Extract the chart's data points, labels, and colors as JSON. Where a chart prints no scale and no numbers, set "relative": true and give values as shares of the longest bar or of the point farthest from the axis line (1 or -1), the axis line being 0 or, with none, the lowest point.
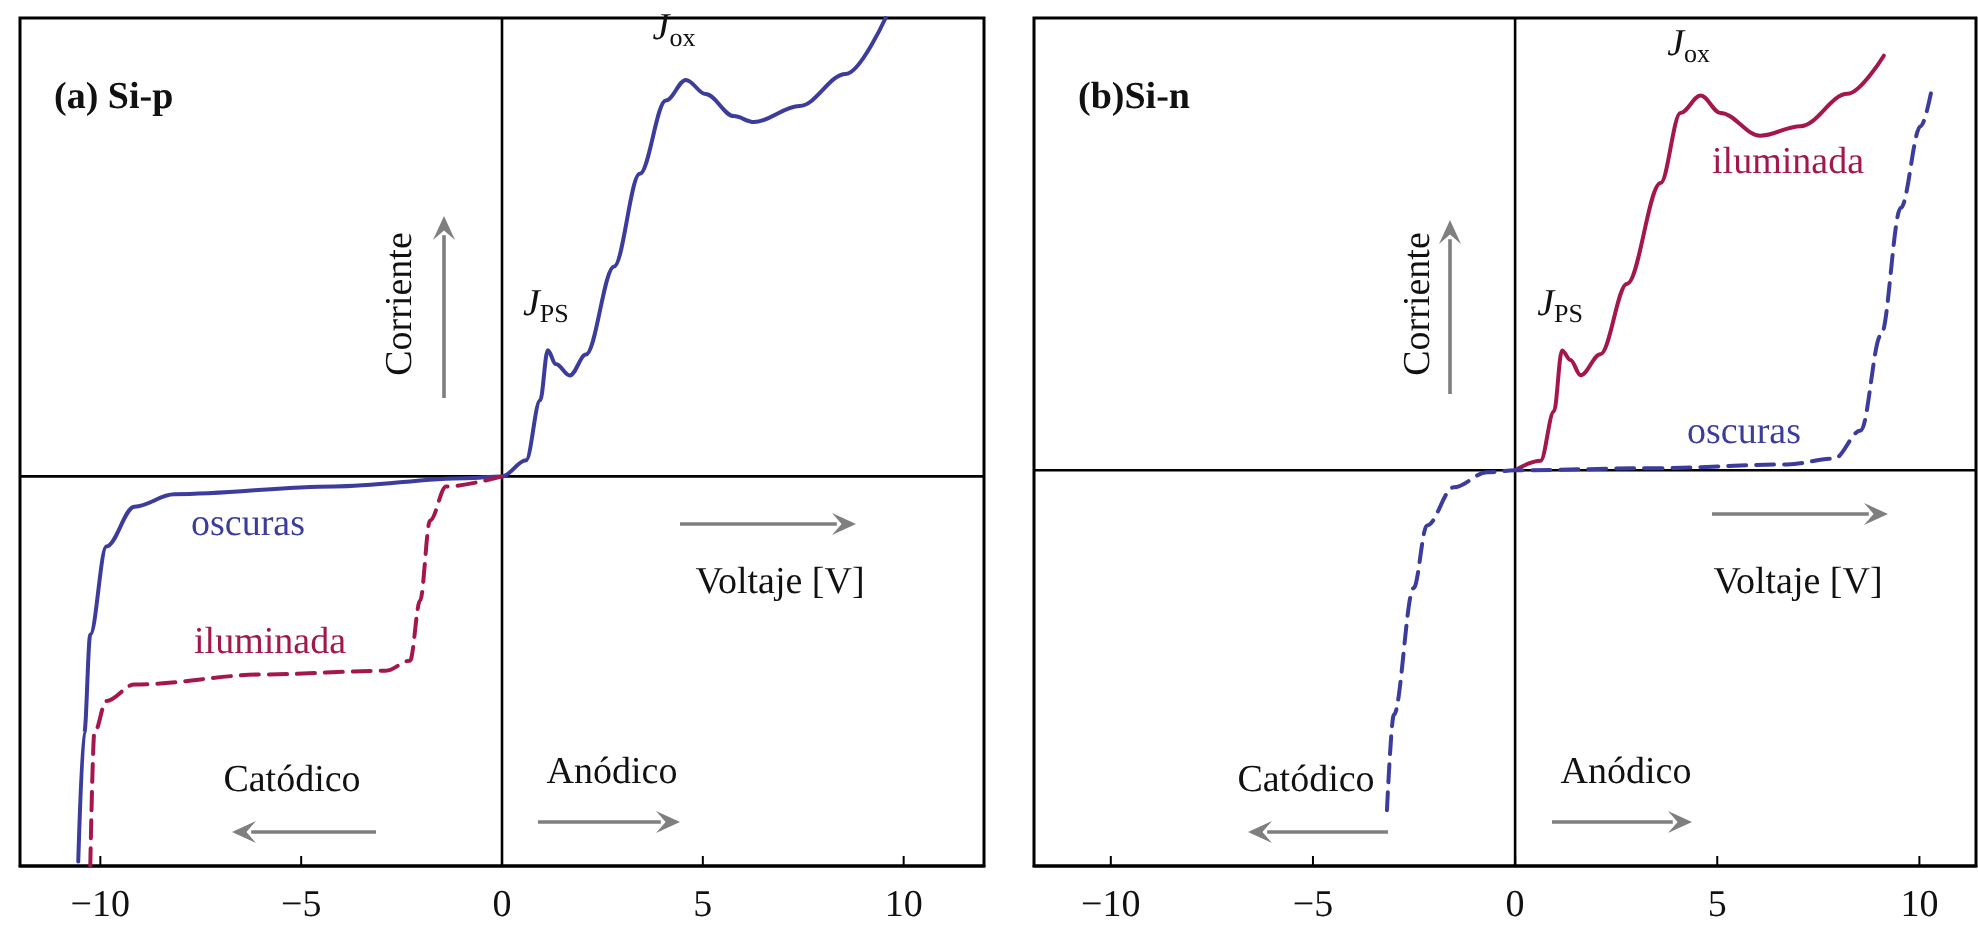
{
  "chart_data": [
    {
      "type": "line",
      "title": "(a) Si-p",
      "relative": true,
      "xlim": [
        -12,
        12
      ],
      "xticks": [
        -10,
        -5,
        0,
        5,
        10
      ],
      "ref_lines": [
        {
          "axis": "x",
          "value": 0,
          "color": "#000000"
        }
      ],
      "grid": false,
      "legend": false,
      "marker": "none",
      "annotations": [
        "Corriente",
        "Voltaje [V]",
        "Anódico",
        "Catódico",
        {
          "text": "J$_{ox}$",
          "x": 4.58,
          "y": 0.865
        },
        {
          "text": "J$_{PS}$",
          "x": 1.14,
          "y": 0.275
        }
      ],
      "series": [
        {
          "name": "oscuras",
          "color": "#3b3c9c",
          "line_style": "solid",
          "x": [
            -10.55,
            -10.4,
            -10.25,
            -9.85,
            -9.15,
            -8.16,
            -4.18,
            -0.9,
            0,
            0.6,
            0.95,
            1.14,
            1.34,
            1.69,
            2.09,
            2.79,
            3.43,
            4.08,
            4.58,
            5.07,
            5.77,
            6.27,
            7.41,
            8.56,
            9.55
          ],
          "values": [
            -0.84,
            -0.56,
            -0.345,
            -0.153,
            -0.066,
            -0.039,
            -0.022,
            -0.004,
            0,
            0.035,
            0.166,
            0.275,
            0.245,
            0.22,
            0.266,
            0.458,
            0.66,
            0.82,
            0.865,
            0.834,
            0.786,
            0.773,
            0.808,
            0.878,
            1
          ]
        },
        {
          "name": "iluminada",
          "color": "#a3174d",
          "line_style": "dashed",
          "x": [
            -10.25,
            -10.15,
            -9.85,
            -9.15,
            -5.87,
            -2.89,
            -2.29,
            -2.04,
            -1.79,
            -1.39,
            0
          ],
          "values": [
            -0.85,
            -0.56,
            -0.49,
            -0.454,
            -0.432,
            -0.424,
            -0.402,
            -0.271,
            -0.096,
            -0.022,
            0
          ]
        }
      ]
    },
    {
      "type": "line",
      "title": "(b)Si-n",
      "relative": true,
      "xlim": [
        -11.9,
        11.4
      ],
      "xticks": [
        -10,
        -5,
        0,
        5,
        10
      ],
      "ref_lines": [
        {
          "axis": "x",
          "value": 0,
          "color": "#000000"
        }
      ],
      "grid": false,
      "legend": false,
      "marker": "none",
      "annotations": [
        "Corriente",
        "Voltaje [V]",
        "Anódico",
        "Catódico",
        {
          "text": "J$_{ox}$",
          "x": 4.59,
          "y": 0.904
        },
        {
          "text": "J$_{PS}$",
          "x": 1.16,
          "y": 0.289
        }
      ],
      "series": [
        {
          "name": "iluminada",
          "color": "#a3174d",
          "line_style": "solid",
          "x": [
            0,
            0.63,
            0.96,
            1.16,
            1.37,
            1.62,
            2.11,
            2.77,
            3.6,
            4.09,
            4.59,
            5.08,
            6.06,
            7.06,
            8.22,
            9.12
          ],
          "values": [
            0,
            0.023,
            0.142,
            0.289,
            0.266,
            0.229,
            0.28,
            0.45,
            0.693,
            0.862,
            0.904,
            0.862,
            0.807,
            0.83,
            0.908,
            1
          ]
        },
        {
          "name": "oscuras",
          "color": "#3b3c9c",
          "line_style": "dashed",
          "x": [
            -3.17,
            -3.0,
            -2.51,
            -2.18,
            -1.52,
            -0.69,
            0,
            3.43,
            6.73,
            7.89,
            8.55,
            9.05,
            9.54,
            10.03,
            10.33
          ],
          "values": [
            -0.82,
            -0.59,
            -0.284,
            -0.133,
            -0.041,
            -0.005,
            0,
            0.005,
            0.014,
            0.028,
            0.096,
            0.326,
            0.633,
            0.83,
            0.931
          ]
        }
      ]
    }
  ]
}
